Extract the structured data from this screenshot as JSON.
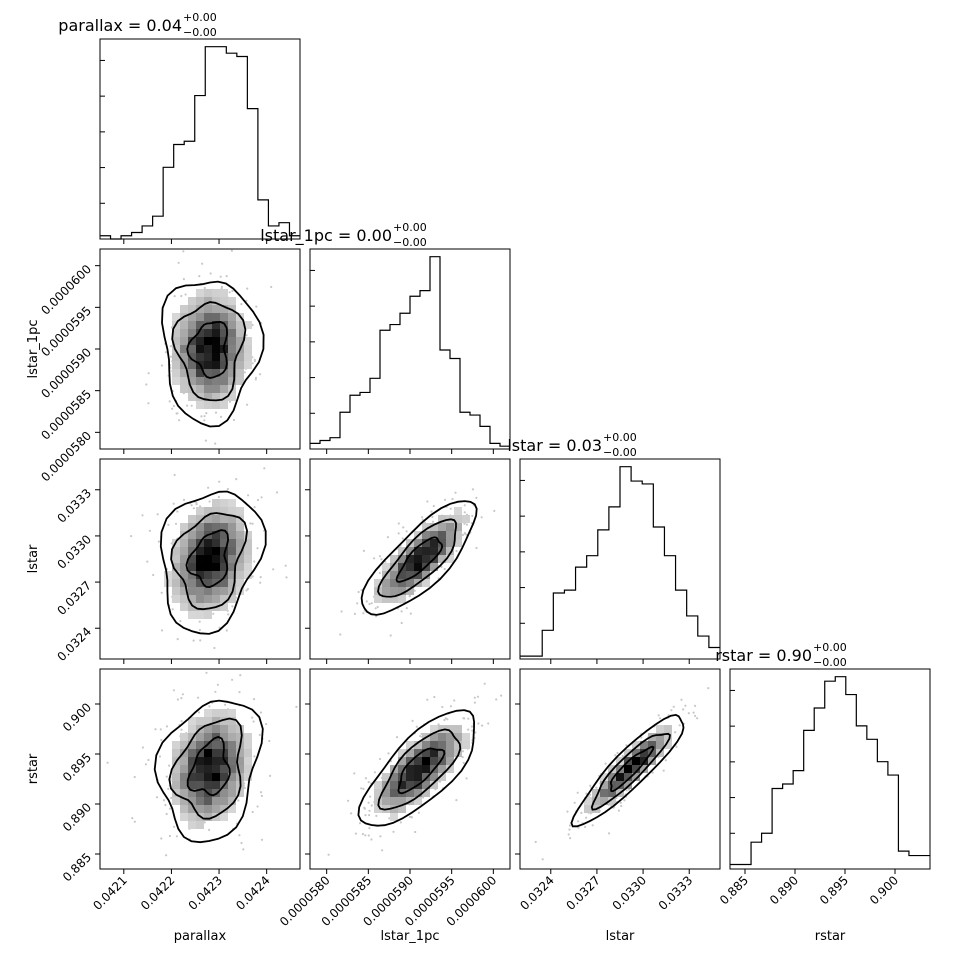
{
  "chart_data": {
    "type": "corner",
    "parameters": [
      "parallax",
      "lstar_1pc",
      "lstar",
      "rstar"
    ],
    "titles": {
      "parallax": {
        "label": "parallax",
        "value": "0.04",
        "plus": "+0.00",
        "minus": "−0.00"
      },
      "lstar_1pc": {
        "label": "lstar_1pc",
        "value": "0.00",
        "plus": "+0.00",
        "minus": "−0.00"
      },
      "lstar": {
        "label": "lstar",
        "value": "0.03",
        "plus": "+0.00",
        "minus": "−0.00"
      },
      "rstar": {
        "label": "rstar",
        "value": "0.90",
        "plus": "+0.00",
        "minus": "−0.00"
      }
    },
    "axes": {
      "parallax": {
        "range": [
          0.04205,
          0.04247
        ],
        "ticks": [
          0.0421,
          0.0422,
          0.0423,
          0.0424
        ],
        "tick_labels": [
          "0.0421",
          "0.0422",
          "0.0423",
          "0.0424"
        ]
      },
      "lstar_1pc": {
        "range": [
          5.78e-05,
          6.02e-05
        ],
        "ticks": [
          5.8e-05,
          5.85e-05,
          5.9e-05,
          5.95e-05,
          6e-05
        ],
        "tick_labels": [
          "0.0000580",
          "0.0000585",
          "0.0000590",
          "0.0000595",
          "0.0000600"
        ]
      },
      "lstar": {
        "range": [
          0.0322,
          0.0335
        ],
        "ticks": [
          0.0324,
          0.0327,
          0.033,
          0.0333
        ],
        "tick_labels": [
          "0.0324",
          "0.0327",
          "0.0330",
          "0.0333"
        ]
      },
      "rstar": {
        "range": [
          0.8835,
          0.9035
        ],
        "ticks": [
          0.885,
          0.89,
          0.895,
          0.9
        ],
        "tick_labels": [
          "0.885",
          "0.890",
          "0.895",
          "0.900"
        ]
      }
    },
    "histograms": {
      "parallax": [
        1,
        0,
        1,
        2,
        4,
        7,
        22,
        29,
        30,
        44,
        59,
        59,
        57,
        56,
        40,
        12,
        4,
        5,
        1
      ],
      "lstar_1pc": [
        2,
        3,
        4,
        13,
        19,
        20,
        25,
        42,
        44,
        48,
        54,
        56,
        68,
        35,
        32,
        13,
        12,
        8,
        2,
        1
      ],
      "lstar": [
        1,
        1,
        10,
        23,
        24,
        32,
        36,
        45,
        53,
        67,
        62,
        61,
        46,
        36,
        24,
        15,
        8,
        4
      ],
      "rstar": [
        1,
        1,
        6,
        8,
        18,
        19,
        22,
        31,
        36,
        42,
        43,
        39,
        32,
        29,
        24,
        21,
        4,
        3,
        3
      ]
    },
    "correlations": {
      "lstar_1pc|parallax": 0.0,
      "lstar|parallax": -0.15,
      "lstar|lstar_1pc": 0.95,
      "rstar|parallax": -0.15,
      "rstar|lstar_1pc": 0.93,
      "rstar|lstar": 0.985
    },
    "grid": false,
    "legend": "none"
  }
}
